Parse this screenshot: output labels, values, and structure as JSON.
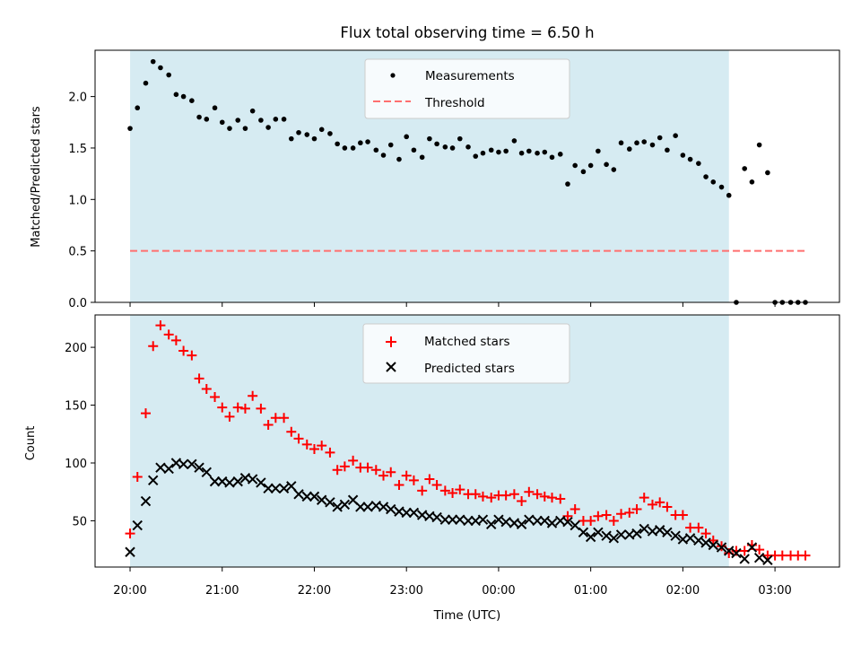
{
  "chart_data": {
    "type": "scatter",
    "title": "Flux total observing time = 6.50 h",
    "xlabel": "Time (UTC)",
    "x_unit": "hours after 20:00 UTC",
    "xlim": [
      -0.38,
      7.7
    ],
    "x_ticks": [
      {
        "t": 0,
        "label": "20:00"
      },
      {
        "t": 1,
        "label": "21:00"
      },
      {
        "t": 2,
        "label": "22:00"
      },
      {
        "t": 3,
        "label": "23:00"
      },
      {
        "t": 4,
        "label": "00:00"
      },
      {
        "t": 5,
        "label": "01:00"
      },
      {
        "t": 6,
        "label": "02:00"
      },
      {
        "t": 7,
        "label": "03:00"
      }
    ],
    "shaded_span": {
      "from": 0,
      "to": 6.5,
      "color": "#add8e6"
    },
    "panels": [
      {
        "ylabel": "Matched/Predicted stars",
        "ylim": [
          0,
          2.45
        ],
        "y_ticks": [
          "0.0",
          "0.5",
          "1.0",
          "1.5",
          "2.0"
        ],
        "y_tick_values": [
          0,
          0.5,
          1.0,
          1.5,
          2.0
        ],
        "legend_position": "upper center",
        "series": [
          {
            "name": "Measurements",
            "marker": "dot",
            "color": "#000000",
            "x": [
              0,
              0.08,
              0.17,
              0.25,
              0.33,
              0.42,
              0.5,
              0.58,
              0.67,
              0.75,
              0.83,
              0.92,
              1.0,
              1.08,
              1.17,
              1.25,
              1.33,
              1.42,
              1.5,
              1.58,
              1.67,
              1.75,
              1.83,
              1.92,
              2.0,
              2.08,
              2.17,
              2.25,
              2.33,
              2.42,
              2.5,
              2.58,
              2.67,
              2.75,
              2.83,
              2.92,
              3.0,
              3.08,
              3.17,
              3.25,
              3.33,
              3.42,
              3.5,
              3.58,
              3.67,
              3.75,
              3.83,
              3.92,
              4.0,
              4.08,
              4.17,
              4.25,
              4.33,
              4.42,
              4.5,
              4.58,
              4.67,
              4.75,
              4.83,
              4.92,
              5.0,
              5.08,
              5.17,
              5.25,
              5.33,
              5.42,
              5.5,
              5.58,
              5.67,
              5.75,
              5.83,
              5.92,
              6.0,
              6.08,
              6.17,
              6.25,
              6.33,
              6.42,
              6.5,
              6.58,
              6.67,
              6.75,
              6.83,
              6.92,
              7.0,
              7.08,
              7.17,
              7.25,
              7.33
            ],
            "y": [
              1.69,
              1.89,
              2.13,
              2.34,
              2.28,
              2.21,
              2.02,
              2.0,
              1.96,
              1.8,
              1.78,
              1.89,
              1.75,
              1.69,
              1.77,
              1.69,
              1.86,
              1.77,
              1.7,
              1.78,
              1.78,
              1.59,
              1.65,
              1.63,
              1.59,
              1.68,
              1.64,
              1.54,
              1.5,
              1.5,
              1.55,
              1.56,
              1.48,
              1.43,
              1.53,
              1.39,
              1.61,
              1.48,
              1.41,
              1.59,
              1.54,
              1.51,
              1.5,
              1.59,
              1.51,
              1.42,
              1.45,
              1.48,
              1.46,
              1.47,
              1.57,
              1.45,
              1.47,
              1.45,
              1.46,
              1.41,
              1.44,
              1.15,
              1.33,
              1.27,
              1.33,
              1.47,
              1.34,
              1.29,
              1.55,
              1.49,
              1.55,
              1.56,
              1.53,
              1.6,
              1.48,
              1.62,
              1.43,
              1.39,
              1.35,
              1.22,
              1.17,
              1.12,
              1.04,
              0.0,
              1.3,
              1.17,
              1.53,
              1.26,
              0.0,
              0.0,
              0.0,
              0.0,
              0.0
            ]
          },
          {
            "name": "Threshold",
            "marker": "dashed-line",
            "color": "#ff6f6f",
            "x": [
              0,
              7.35
            ],
            "y": [
              0.5,
              0.5
            ]
          }
        ]
      },
      {
        "ylabel": "Count",
        "ylim": [
          10,
          228
        ],
        "y_ticks": [
          "50",
          "100",
          "150",
          "200"
        ],
        "y_tick_values": [
          50,
          100,
          150,
          200
        ],
        "legend_position": "upper center",
        "series": [
          {
            "name": "Matched stars",
            "marker": "plus",
            "color": "#ff0000",
            "x": [
              0,
              0.08,
              0.17,
              0.25,
              0.33,
              0.42,
              0.5,
              0.58,
              0.67,
              0.75,
              0.83,
              0.92,
              1.0,
              1.08,
              1.17,
              1.25,
              1.33,
              1.42,
              1.5,
              1.58,
              1.67,
              1.75,
              1.83,
              1.92,
              2.0,
              2.08,
              2.17,
              2.25,
              2.33,
              2.42,
              2.5,
              2.58,
              2.67,
              2.75,
              2.83,
              2.92,
              3.0,
              3.08,
              3.17,
              3.25,
              3.33,
              3.42,
              3.5,
              3.58,
              3.67,
              3.75,
              3.83,
              3.92,
              4.0,
              4.08,
              4.17,
              4.25,
              4.33,
              4.42,
              4.5,
              4.58,
              4.67,
              4.75,
              4.83,
              4.92,
              5.0,
              5.08,
              5.17,
              5.25,
              5.33,
              5.42,
              5.5,
              5.58,
              5.67,
              5.75,
              5.83,
              5.92,
              6.0,
              6.08,
              6.17,
              6.25,
              6.33,
              6.42,
              6.5,
              6.58,
              6.67,
              6.75,
              6.83,
              6.92,
              7.0,
              7.08,
              7.17,
              7.25,
              7.33
            ],
            "y": [
              39,
              88,
              143,
              201,
              219,
              211,
              206,
              197,
              193,
              173,
              164,
              157,
              148,
              140,
              148,
              147,
              158,
              147,
              133,
              139,
              139,
              127,
              121,
              116,
              112,
              115,
              109,
              94,
              97,
              102,
              96,
              96,
              94,
              89,
              92,
              81,
              89,
              85,
              76,
              86,
              81,
              76,
              74,
              77,
              73,
              73,
              71,
              70,
              72,
              72,
              73,
              67,
              75,
              73,
              71,
              70,
              69,
              54,
              60,
              50,
              50,
              54,
              55,
              50,
              56,
              57,
              60,
              70,
              64,
              66,
              62,
              55,
              55,
              44,
              44,
              39,
              33,
              28,
              22,
              24,
              24,
              29,
              25,
              20,
              20,
              20,
              20,
              20,
              20
            ]
          },
          {
            "name": "Predicted stars",
            "marker": "x",
            "color": "#000000",
            "x": [
              0,
              0.08,
              0.17,
              0.25,
              0.33,
              0.42,
              0.5,
              0.58,
              0.67,
              0.75,
              0.83,
              0.92,
              1.0,
              1.08,
              1.17,
              1.25,
              1.33,
              1.42,
              1.5,
              1.58,
              1.67,
              1.75,
              1.83,
              1.92,
              2.0,
              2.08,
              2.17,
              2.25,
              2.33,
              2.42,
              2.5,
              2.58,
              2.67,
              2.75,
              2.83,
              2.92,
              3.0,
              3.08,
              3.17,
              3.25,
              3.33,
              3.42,
              3.5,
              3.58,
              3.67,
              3.75,
              3.83,
              3.92,
              4.0,
              4.08,
              4.17,
              4.25,
              4.33,
              4.42,
              4.5,
              4.58,
              4.67,
              4.75,
              4.83,
              4.92,
              5.0,
              5.08,
              5.17,
              5.25,
              5.33,
              5.42,
              5.5,
              5.58,
              5.67,
              5.75,
              5.83,
              5.92,
              6.0,
              6.08,
              6.17,
              6.25,
              6.33,
              6.42,
              6.5,
              6.58,
              6.67,
              6.75,
              6.83,
              6.92
            ],
            "y": [
              23,
              46,
              67,
              85,
              96,
              95,
              100,
              99,
              99,
              96,
              92,
              84,
              84,
              83,
              84,
              87,
              86,
              83,
              78,
              78,
              78,
              80,
              73,
              71,
              71,
              68,
              66,
              62,
              64,
              68,
              62,
              62,
              63,
              62,
              60,
              58,
              57,
              57,
              55,
              54,
              53,
              51,
              51,
              51,
              50,
              50,
              51,
              47,
              51,
              49,
              48,
              47,
              51,
              50,
              50,
              48,
              50,
              49,
              46,
              40,
              36,
              40,
              37,
              35,
              38,
              38,
              39,
              43,
              41,
              42,
              40,
              37,
              34,
              35,
              33,
              31,
              29,
              27,
              24,
              22,
              17,
              27,
              18,
              16
            ]
          }
        ]
      }
    ]
  }
}
